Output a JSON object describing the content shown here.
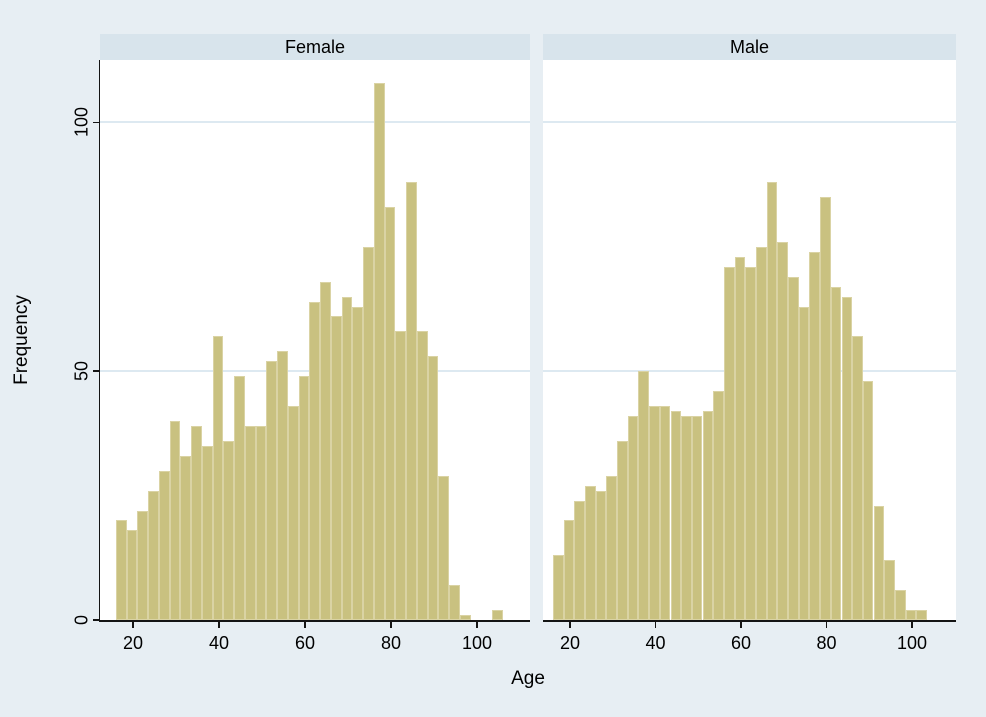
{
  "figure": {
    "background": "#e7eef3",
    "panel_background": "#ffffff",
    "header_background": "#d8e4ec",
    "bar_fill": "#c9c180",
    "bar_outline": "#dad3a4",
    "grid_color": "#dde9f1",
    "axis_color": "#141414",
    "text_color": "#000000"
  },
  "y_axis": {
    "title": "Frequency",
    "tick_labels": [
      "0",
      "50",
      "100"
    ],
    "tick_values": [
      0,
      50,
      100
    ]
  },
  "x_axis": {
    "title": "Age",
    "tick_values": [
      20,
      40,
      60,
      80,
      100
    ]
  },
  "chart_data": {
    "type": "bar",
    "subtype": "histogram-faceted",
    "title": "",
    "xlabel": "Age",
    "ylabel": "Frequency",
    "bin_start": 16,
    "bin_width": 2.5,
    "n_bins": 36,
    "xlim": [
      12,
      112
    ],
    "ylim": [
      0,
      112.5
    ],
    "grid": "horizontal",
    "legend": "none",
    "panels": [
      {
        "label": "Female",
        "frequencies": [
          20,
          18,
          22,
          26,
          30,
          40,
          33,
          39,
          35,
          57,
          36,
          49,
          39,
          39,
          52,
          54,
          43,
          49,
          64,
          68,
          61,
          65,
          63,
          75,
          108,
          83,
          58,
          88,
          58,
          53,
          29,
          7,
          1,
          0,
          0,
          2
        ]
      },
      {
        "label": "Male",
        "frequencies": [
          13,
          20,
          24,
          27,
          26,
          29,
          36,
          41,
          50,
          43,
          43,
          42,
          41,
          41,
          42,
          46,
          71,
          73,
          71,
          75,
          88,
          76,
          69,
          63,
          74,
          85,
          67,
          65,
          57,
          48,
          23,
          12,
          6,
          2,
          2,
          0
        ]
      }
    ]
  }
}
